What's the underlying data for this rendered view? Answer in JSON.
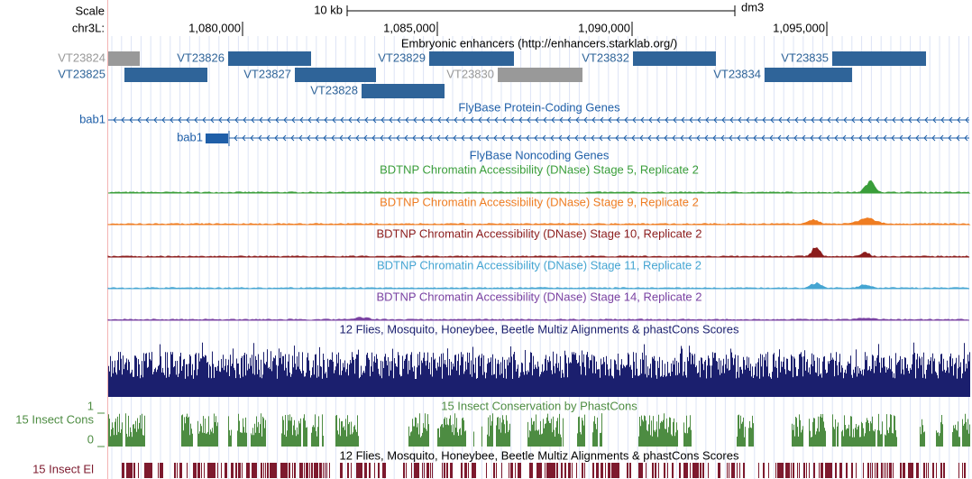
{
  "header": {
    "scale": "Scale",
    "scale_size": "10 kb",
    "assembly": "dm3",
    "chrom": "chr3L:",
    "positions": [
      "1,080,000",
      "1,085,000",
      "1,090,000",
      "1,095,000"
    ]
  },
  "enhancers": {
    "title": "Embryonic enhancers (http://enhancers.starklab.org/)",
    "items": [
      {
        "label": "VT23824",
        "color": "#999999"
      },
      {
        "label": "VT23825",
        "color": "#2f6499"
      },
      {
        "label": "VT23826",
        "color": "#2f6499"
      },
      {
        "label": "VT23827",
        "color": "#2f6499"
      },
      {
        "label": "VT23828",
        "color": "#2f6499"
      },
      {
        "label": "VT23829",
        "color": "#2f6499"
      },
      {
        "label": "VT23830",
        "color": "#999999"
      },
      {
        "label": "VT23832",
        "color": "#2f6499"
      },
      {
        "label": "VT23834",
        "color": "#2f6499"
      },
      {
        "label": "VT23835",
        "color": "#2f6499"
      }
    ]
  },
  "genes": {
    "title": "FlyBase Protein-Coding Genes",
    "left_label": "bab1",
    "items": [
      "bab1"
    ],
    "color": "#1f5fa8"
  },
  "noncoding": {
    "title": "FlyBase Noncoding Genes"
  },
  "dnase": [
    {
      "title": "BDTNP Chromatin Accessibility (DNase) Stage 5, Replicate 2",
      "color": "#3a9e3a"
    },
    {
      "title": "BDTNP Chromatin Accessibility (DNase) Stage 9, Replicate 2",
      "color": "#ef7d22"
    },
    {
      "title": "BDTNP Chromatin Accessibility (DNase) Stage 10, Replicate 2",
      "color": "#8b1c1c"
    },
    {
      "title": "BDTNP Chromatin Accessibility (DNase) Stage 11, Replicate 2",
      "color": "#45a5d2"
    },
    {
      "title": "BDTNP Chromatin Accessibility (DNase) Stage 14, Replicate 2",
      "color": "#7a42a2"
    }
  ],
  "multiz": {
    "title": "12 Flies, Mosquito, Honeybee, Beetle Multiz Alignments & phastCons Scores",
    "color": "#1b1f6e"
  },
  "phastcons": {
    "title": "15 Insect Conservation by PhastCons",
    "left_label": "15 Insect Cons",
    "max_label": "1",
    "min_label": "0",
    "color": "#4d8c42"
  },
  "elements": {
    "title": "12 Flies, Mosquito, Honeybee, Beetle Multiz Alignments & phastCons Scores",
    "left_label": "15 Insect El",
    "color": "#7d1a2e"
  }
}
